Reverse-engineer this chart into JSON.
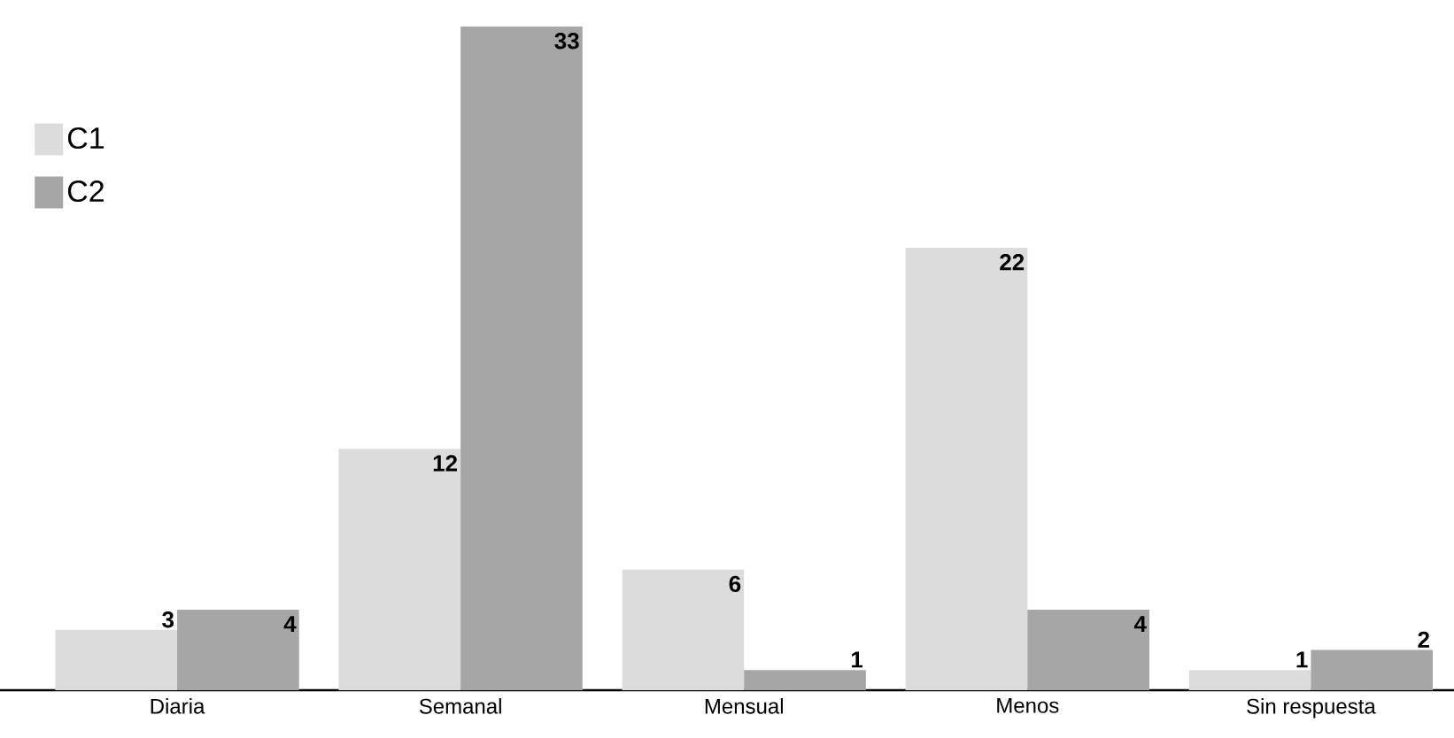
{
  "chart_data": {
    "type": "bar",
    "categories": [
      "Diaria",
      "Semanal",
      "Mensual",
      "Menos",
      "Sin respuesta"
    ],
    "series": [
      {
        "name": "C1",
        "color": "#dcdcdc",
        "values": [
          3,
          12,
          6,
          22,
          1
        ]
      },
      {
        "name": "C2",
        "color": "#a6a6a6",
        "values": [
          4,
          33,
          1,
          4,
          2
        ]
      }
    ],
    "data_labels": true,
    "legend": "top left"
  }
}
